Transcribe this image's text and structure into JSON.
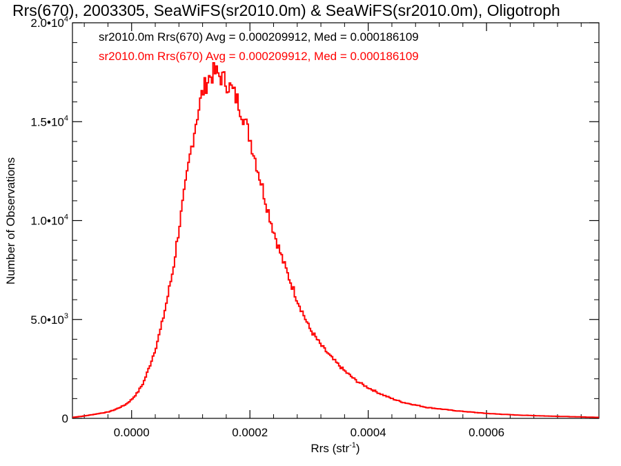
{
  "chart_data": {
    "type": "line",
    "step": true,
    "title": "Rrs(670), 2003305, SeaWiFS(sr2010.0m) & SeaWiFS(sr2010.0m), Oligotroph",
    "xlabel": "Rrs (str",
    "xlabel_sup": "-1",
    "xlabel_close": ")",
    "ylabel": "Number of Observations",
    "xlim": [
      -0.0001,
      0.00079
    ],
    "ylim": [
      0,
      20000
    ],
    "grid": false,
    "legend_position": "top-left",
    "x_ticks": [
      {
        "value": 0.0,
        "label": "0.0000"
      },
      {
        "value": 0.0002,
        "label": "0.0002"
      },
      {
        "value": 0.0004,
        "label": "0.0004"
      },
      {
        "value": 0.0006,
        "label": "0.0006"
      }
    ],
    "y_ticks": [
      {
        "value": 0,
        "mant": "0",
        "exp": ""
      },
      {
        "value": 5000,
        "mant": "5.0•10",
        "exp": "3"
      },
      {
        "value": 10000,
        "mant": "1.0•10",
        "exp": "4"
      },
      {
        "value": 15000,
        "mant": "1.5•10",
        "exp": "4"
      },
      {
        "value": 20000,
        "mant": "2.0•10",
        "exp": "4"
      }
    ],
    "annotations": [
      {
        "text": "sr2010.0m Rrs(670) Avg = 0.000209912, Med = 0.000186109",
        "color": "#000000"
      },
      {
        "text": "sr2010.0m Rrs(670) Avg = 0.000209912, Med = 0.000186109",
        "color": "#ff0000"
      }
    ],
    "series": [
      {
        "color": "#ff0000",
        "x": [
          -0.0001,
          -8e-05,
          -6e-05,
          -4e-05,
          -3e-05,
          -2e-05,
          -1e-05,
          0.0,
          1e-05,
          2e-05,
          3e-05,
          4e-05,
          5e-05,
          6e-05,
          7e-05,
          8e-05,
          9e-05,
          0.0001,
          0.00011,
          0.00012,
          0.00013,
          0.00014,
          0.00015,
          0.00016,
          0.00017,
          0.00018,
          0.00019,
          0.0002,
          0.00021,
          0.00022,
          0.00023,
          0.00024,
          0.00025,
          0.00026,
          0.00027,
          0.00028,
          0.00029,
          0.0003,
          0.00032,
          0.00034,
          0.00036,
          0.00038,
          0.0004,
          0.00042,
          0.00044,
          0.00046,
          0.0005,
          0.00055,
          0.0006,
          0.00065,
          0.0007,
          0.00075,
          0.00079
        ],
        "y": [
          50,
          120,
          220,
          320,
          420,
          550,
          700,
          950,
          1300,
          1800,
          2600,
          3500,
          4600,
          6000,
          7500,
          9600,
          11500,
          13500,
          15200,
          16500,
          17200,
          17500,
          17300,
          17000,
          16600,
          16000,
          15200,
          14200,
          13000,
          11800,
          10600,
          9500,
          8500,
          7600,
          6800,
          6000,
          5300,
          4600,
          3700,
          3000,
          2400,
          1900,
          1550,
          1250,
          1000,
          800,
          550,
          380,
          250,
          170,
          120,
          80,
          50
        ]
      }
    ]
  }
}
